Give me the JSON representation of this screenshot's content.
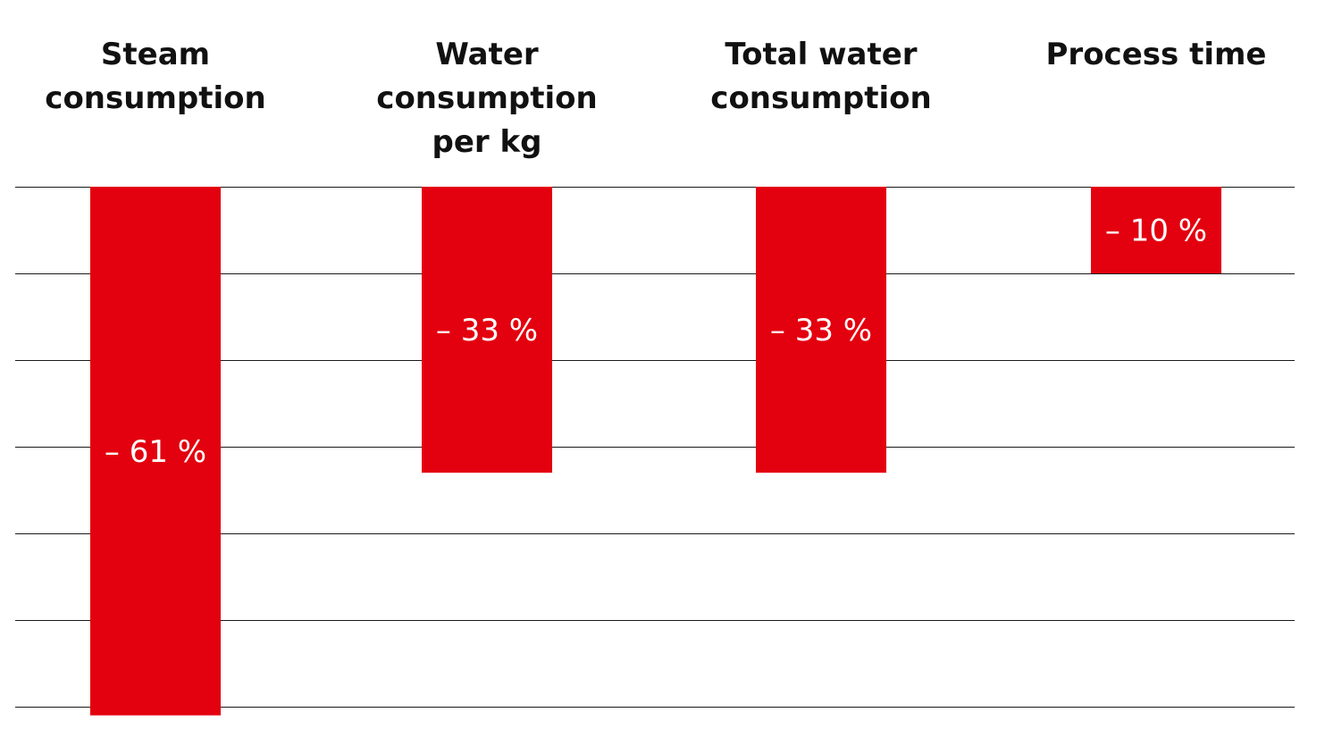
{
  "chart_data": {
    "type": "bar",
    "orientation": "downward",
    "categories": [
      [
        "Steam",
        "consumption"
      ],
      [
        "Water",
        "consumption",
        "per kg"
      ],
      [
        "Total water",
        "consumption"
      ],
      [
        "Process time"
      ]
    ],
    "values": [
      -61,
      -33,
      -33,
      -10
    ],
    "value_labels": [
      "– 61 %",
      "– 33 %",
      "– 33 %",
      "– 10 %"
    ],
    "ylim": [
      -60,
      0
    ],
    "grid_step": 10,
    "grid": true,
    "bar_color": "#e3000f",
    "title": "",
    "xlabel": "",
    "ylabel": ""
  }
}
